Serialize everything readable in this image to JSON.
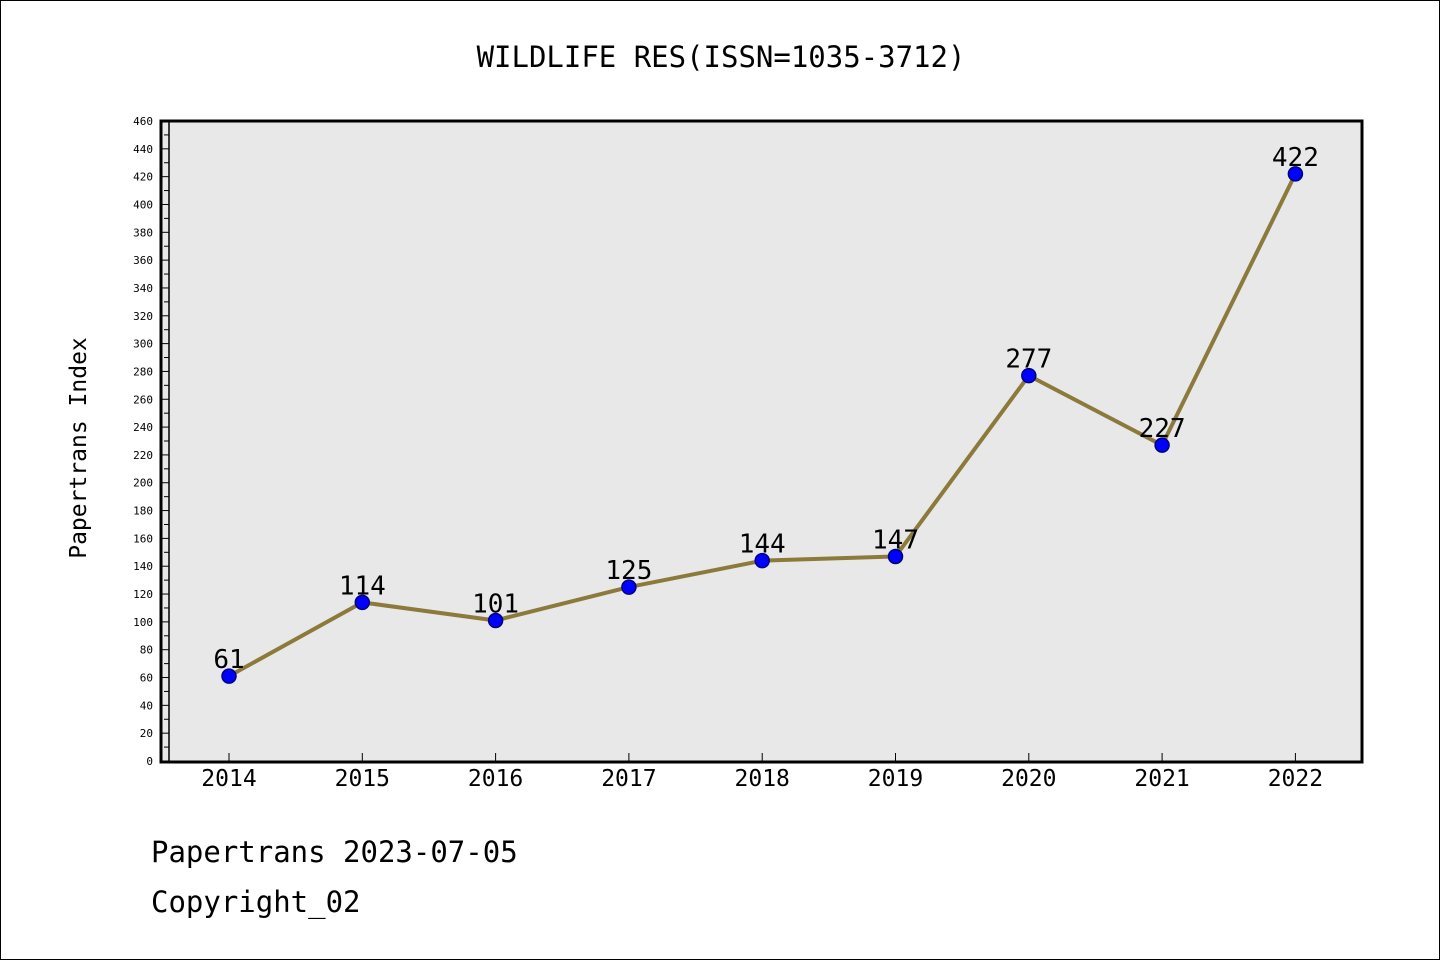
{
  "chart_data": {
    "type": "line",
    "title": "WILDLIFE RES(ISSN=1035-3712)",
    "xlabel": "",
    "ylabel": "Papertrans Index",
    "categories": [
      "2014",
      "2015",
      "2016",
      "2017",
      "2018",
      "2019",
      "2020",
      "2021",
      "2022"
    ],
    "values": [
      61,
      114,
      101,
      125,
      144,
      147,
      277,
      227,
      422
    ],
    "ylim": [
      0,
      460
    ],
    "y_tick_step": 20,
    "y_minor_step": 10,
    "grid": false,
    "legend": "none",
    "data_labels": true
  },
  "colors": {
    "plot_background": "#e8e8e8",
    "line": "#8b7a3a",
    "marker_fill": "#0000ff",
    "marker_edge": "#000080",
    "axis": "#000000"
  },
  "footer": {
    "line1": "Papertrans 2023-07-05",
    "line2": "Copyright_02"
  }
}
